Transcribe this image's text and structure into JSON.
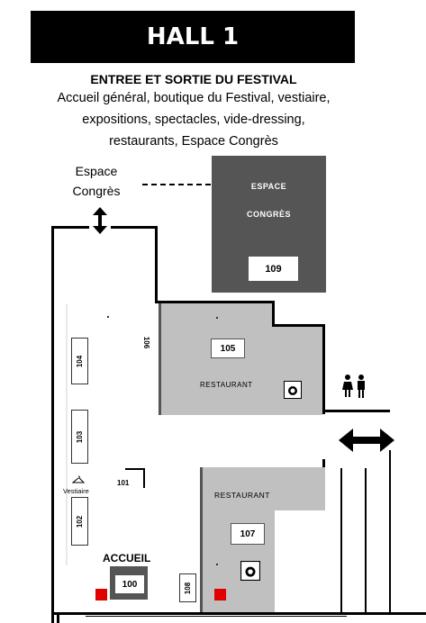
{
  "header": {
    "title": "HALL 1"
  },
  "info": {
    "subtitle": "ENTREE ET SORTIE DU FESTIVAL",
    "lines": [
      "Accueil général, boutique du Festival, vestiaire,",
      "expositions, spectacles, vide-dressing,",
      "restaurants, Espace Congrès"
    ]
  },
  "map": {
    "espace_congres_label_line1": "Espace",
    "espace_congres_label_line2": "Congrès",
    "espace_congres_room_line1": "ESPACE",
    "espace_congres_room_line2": "CONGRÈS",
    "room_109": "109",
    "room_105": "105",
    "room_106": "106",
    "room_107": "107",
    "room_104": "104",
    "room_103": "103",
    "room_102": "102",
    "room_101": "101",
    "room_100": "100",
    "room_108": "108",
    "restaurant_upper": "RESTAURANT",
    "restaurant_lower": "RESTAURANT",
    "vestiaire": "Vestiaire",
    "accueil": "ACCUEIL",
    "colors": {
      "congres": "#555555",
      "restaurant": "#c0c0c0",
      "marker": "#e10000"
    },
    "icons": [
      "up-down-arrow-icon",
      "restroom-icon",
      "left-right-arrow-icon",
      "dining-icon",
      "hanger-icon"
    ]
  }
}
